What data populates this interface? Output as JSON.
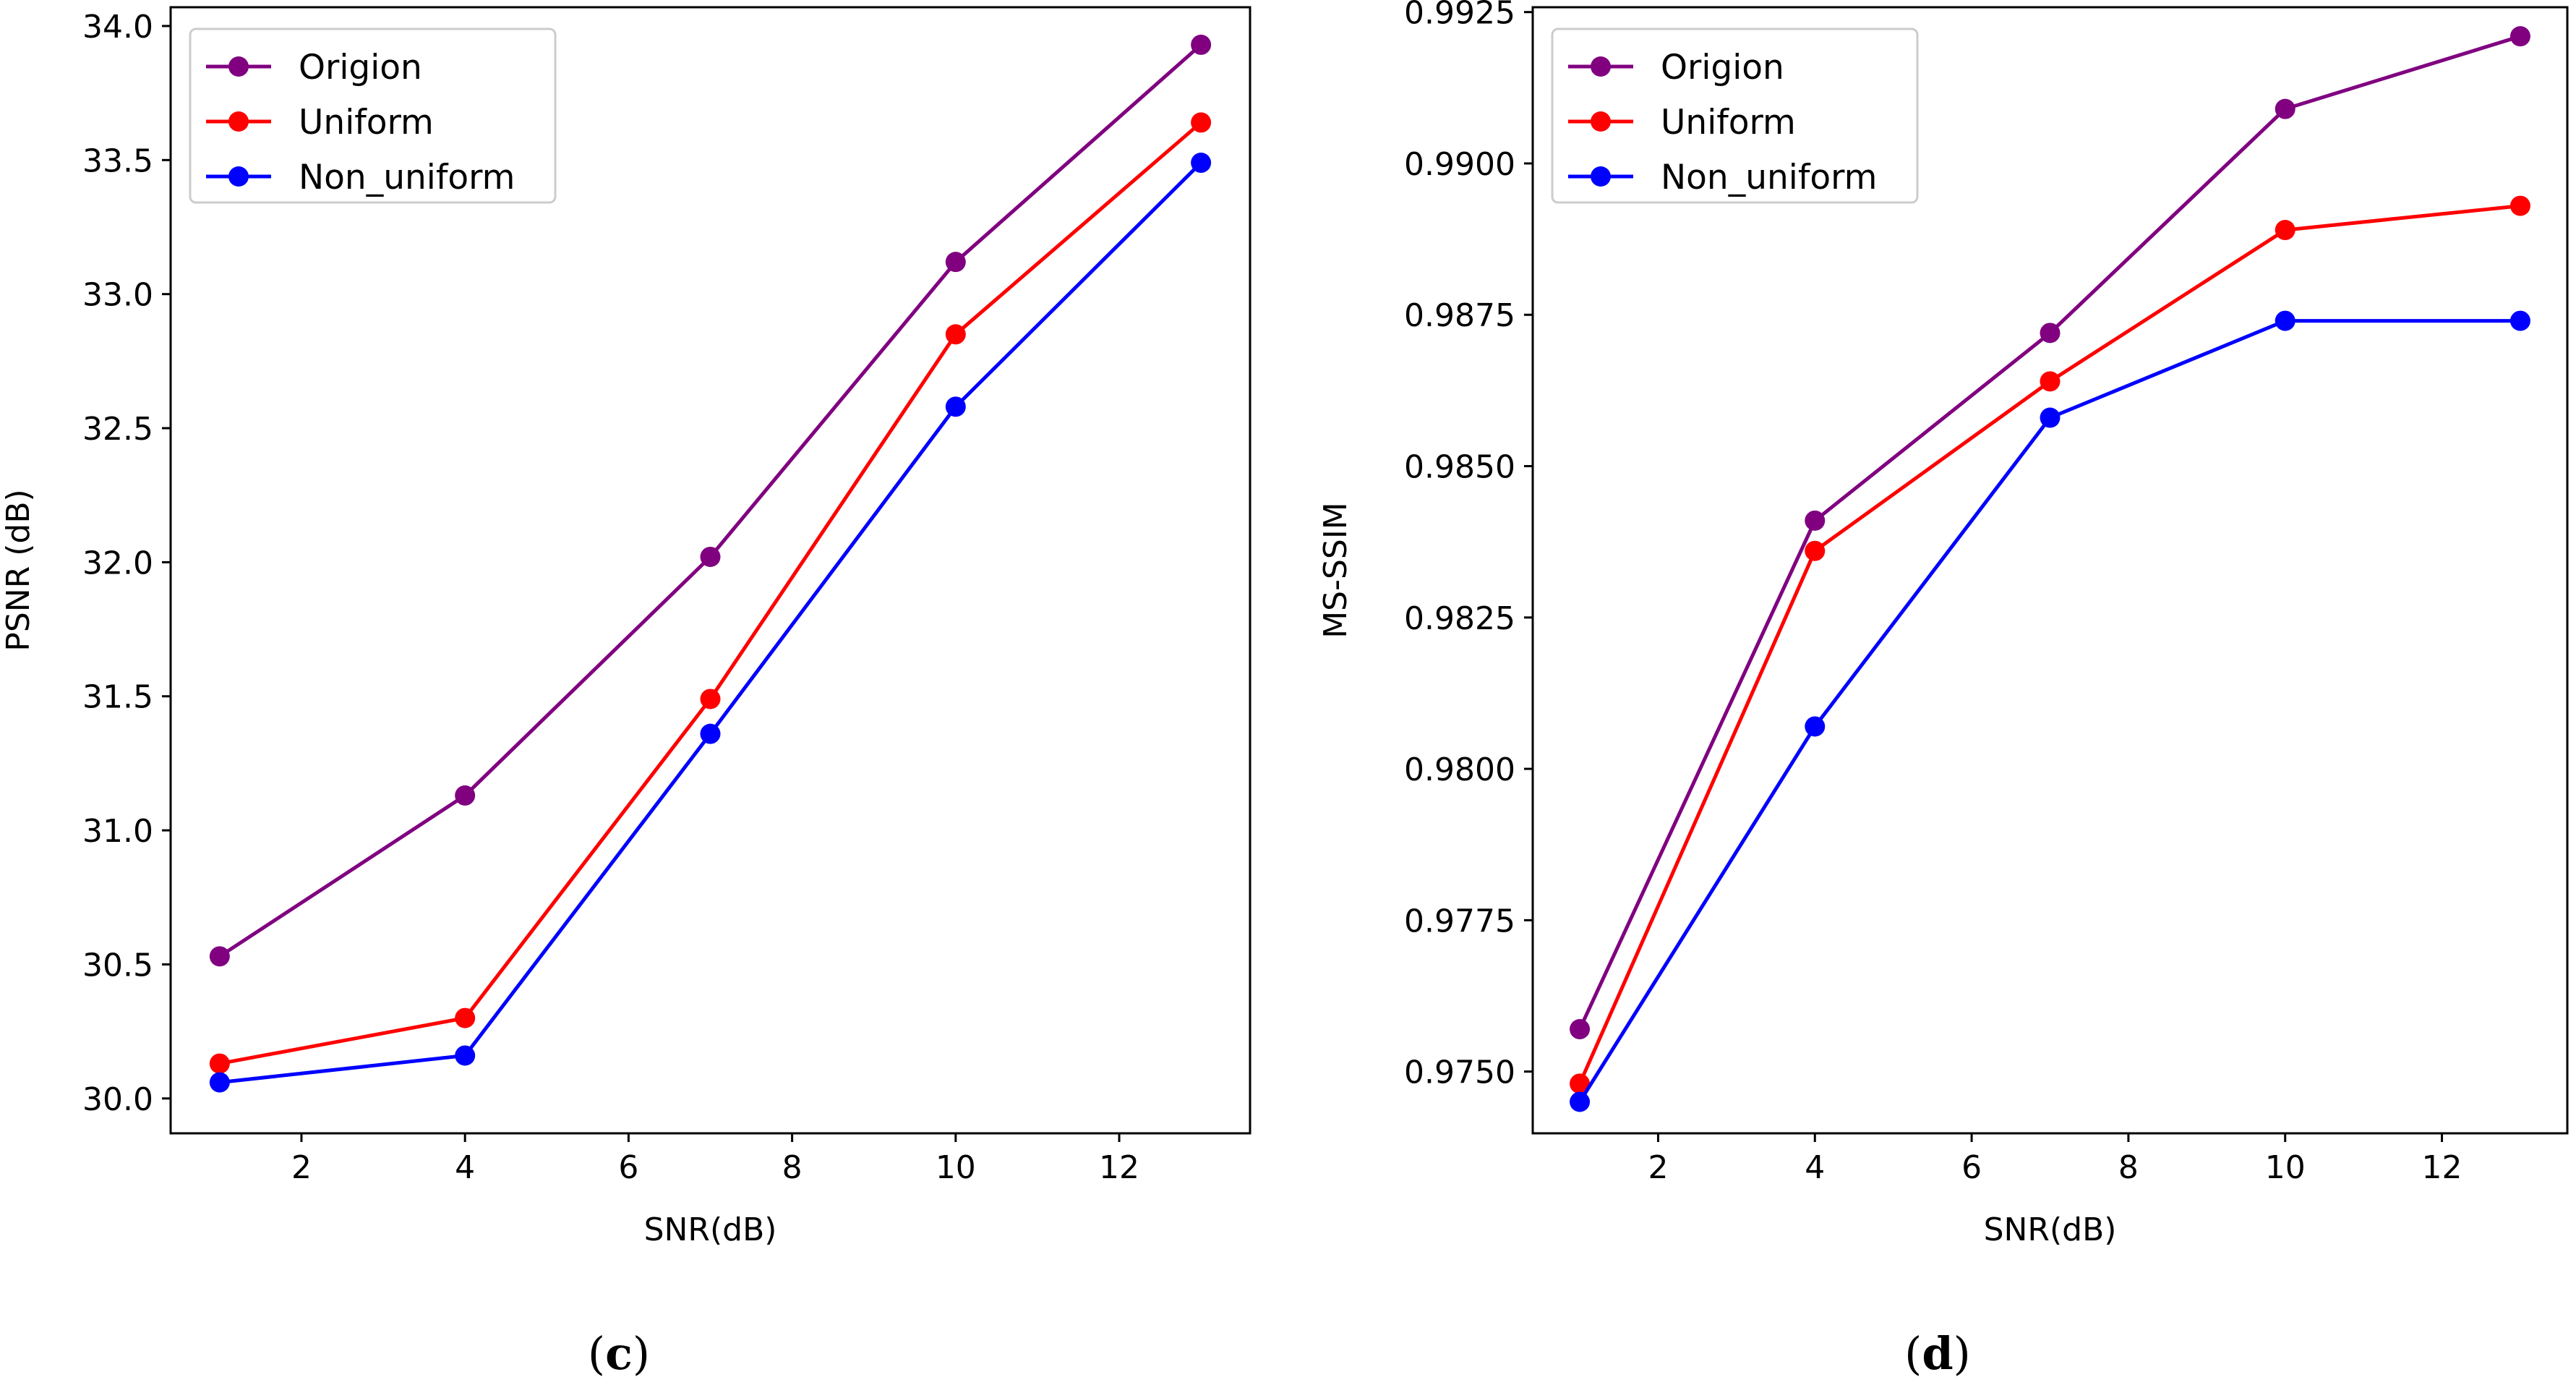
{
  "chart_data": [
    {
      "type": "line",
      "title": "",
      "caption": "(c)",
      "caption_open": "(",
      "caption_letter": "c",
      "caption_close": ")",
      "xlabel": "SNR(dB)",
      "ylabel": "PSNR (dB)",
      "x": [
        1,
        4,
        7,
        10,
        13
      ],
      "xlim": [
        0.4,
        13.6
      ],
      "ylim": [
        29.87,
        34.07
      ],
      "xticks": [
        2,
        4,
        6,
        8,
        10,
        12
      ],
      "xtick_labels": [
        "2",
        "4",
        "6",
        "8",
        "10",
        "12"
      ],
      "yticks": [
        30.0,
        30.5,
        31.0,
        31.5,
        32.0,
        32.5,
        33.0,
        33.5,
        34.0
      ],
      "ytick_labels": [
        "30.0",
        "30.5",
        "31.0",
        "31.5",
        "32.0",
        "32.5",
        "33.0",
        "33.5",
        "34.0"
      ],
      "grid": false,
      "legend_position": "upper-left",
      "series": [
        {
          "name": "Origion",
          "color": "#800080",
          "values": [
            30.53,
            31.13,
            32.02,
            33.12,
            33.93
          ]
        },
        {
          "name": "Uniform",
          "color": "#ff0000",
          "values": [
            30.13,
            30.3,
            31.49,
            32.85,
            33.64
          ]
        },
        {
          "name": "Non_uniform",
          "color": "#0000ff",
          "values": [
            30.06,
            30.16,
            31.36,
            32.58,
            33.49
          ]
        }
      ]
    },
    {
      "type": "line",
      "title": "",
      "caption": "(d)",
      "caption_open": "(",
      "caption_letter": "d",
      "caption_close": ")",
      "xlabel": "SNR(dB)",
      "ylabel": "MS-SSIM",
      "x": [
        1,
        4,
        7,
        10,
        13
      ],
      "xlim": [
        0.4,
        13.6
      ],
      "ylim": [
        0.97398,
        0.99258
      ],
      "xticks": [
        2,
        4,
        6,
        8,
        10,
        12
      ],
      "xtick_labels": [
        "2",
        "4",
        "6",
        "8",
        "10",
        "12"
      ],
      "yticks": [
        0.975,
        0.9775,
        0.98,
        0.9825,
        0.985,
        0.9875,
        0.99,
        0.9925
      ],
      "ytick_labels": [
        "0.9750",
        "0.9775",
        "0.9800",
        "0.9825",
        "0.9850",
        "0.9875",
        "0.9900",
        "0.9925"
      ],
      "grid": false,
      "legend_position": "upper-left",
      "series": [
        {
          "name": "Origion",
          "color": "#800080",
          "values": [
            0.9757,
            0.9841,
            0.9872,
            0.9909,
            0.9921
          ]
        },
        {
          "name": "Uniform",
          "color": "#ff0000",
          "values": [
            0.9748,
            0.9836,
            0.9864,
            0.9889,
            0.9893
          ]
        },
        {
          "name": "Non_uniform",
          "color": "#0000ff",
          "values": [
            0.9745,
            0.9807,
            0.9858,
            0.9874,
            0.9874
          ]
        }
      ]
    }
  ]
}
